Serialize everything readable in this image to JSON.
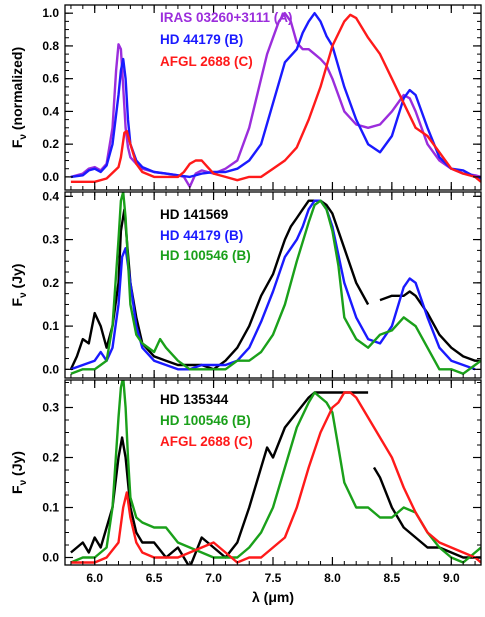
{
  "chart_data": [
    {
      "type": "line",
      "ylabel": "F_ν (normalized)",
      "ylim": [
        -0.08,
        1.05
      ],
      "xlim": [
        5.75,
        9.25
      ],
      "yticks": [
        0.0,
        0.2,
        0.4,
        0.6,
        0.8,
        1.0
      ],
      "ytick_labels": [
        "0.0",
        "0.2",
        "0.4",
        "0.6",
        "0.8",
        "1.0"
      ],
      "legend_position": "top-left",
      "series": [
        {
          "name": "IRAS 03260+3111 (A)",
          "color": "#9b2ddc",
          "x": [
            5.8,
            5.9,
            5.95,
            6.0,
            6.05,
            6.1,
            6.15,
            6.18,
            6.2,
            6.22,
            6.24,
            6.26,
            6.28,
            6.3,
            6.35,
            6.4,
            6.5,
            6.6,
            6.7,
            6.75,
            6.8,
            6.85,
            6.9,
            6.95,
            7.0,
            7.1,
            7.2,
            7.3,
            7.4,
            7.45,
            7.5,
            7.55,
            7.6,
            7.65,
            7.7,
            7.75,
            7.8,
            7.85,
            7.9,
            7.95,
            8.0,
            8.1,
            8.2,
            8.3,
            8.4,
            8.5,
            8.6,
            8.65,
            8.7,
            8.8,
            8.9,
            9.0,
            9.1,
            9.2,
            9.25
          ],
          "y": [
            0.0,
            0.02,
            0.05,
            0.06,
            0.04,
            0.08,
            0.3,
            0.65,
            0.81,
            0.78,
            0.55,
            0.3,
            0.18,
            0.12,
            0.08,
            0.05,
            0.03,
            0.02,
            0.01,
            0.0,
            -0.06,
            0.02,
            0.04,
            0.03,
            0.02,
            0.05,
            0.1,
            0.3,
            0.6,
            0.75,
            0.85,
            0.95,
            1.0,
            0.95,
            0.82,
            0.78,
            0.78,
            0.75,
            0.72,
            0.68,
            0.6,
            0.4,
            0.32,
            0.3,
            0.32,
            0.4,
            0.5,
            0.48,
            0.4,
            0.2,
            0.1,
            0.05,
            0.02,
            0.01,
            0.0
          ]
        },
        {
          "name": "HD 44179 (B)",
          "color": "#1a1aff",
          "x": [
            5.8,
            5.9,
            5.95,
            6.0,
            6.05,
            6.1,
            6.15,
            6.2,
            6.22,
            6.24,
            6.26,
            6.28,
            6.3,
            6.35,
            6.4,
            6.5,
            6.6,
            6.7,
            6.8,
            6.9,
            7.0,
            7.1,
            7.2,
            7.3,
            7.4,
            7.5,
            7.6,
            7.7,
            7.75,
            7.8,
            7.85,
            7.9,
            7.95,
            8.0,
            8.1,
            8.2,
            8.3,
            8.4,
            8.5,
            8.6,
            8.65,
            8.7,
            8.8,
            8.9,
            9.0,
            9.1,
            9.2,
            9.25
          ],
          "y": [
            0.0,
            0.01,
            0.04,
            0.05,
            0.03,
            0.07,
            0.2,
            0.5,
            0.65,
            0.72,
            0.6,
            0.35,
            0.2,
            0.1,
            0.06,
            0.03,
            0.02,
            0.01,
            0.0,
            0.02,
            0.03,
            0.03,
            0.05,
            0.1,
            0.2,
            0.45,
            0.7,
            0.78,
            0.88,
            0.95,
            1.0,
            0.95,
            0.86,
            0.8,
            0.55,
            0.35,
            0.2,
            0.15,
            0.25,
            0.48,
            0.53,
            0.5,
            0.3,
            0.12,
            0.05,
            0.04,
            0.0,
            -0.01
          ]
        },
        {
          "name": "AFGL 2688 (C)",
          "color": "#ff1a1a",
          "x": [
            5.8,
            5.9,
            6.0,
            6.1,
            6.2,
            6.22,
            6.25,
            6.27,
            6.3,
            6.35,
            6.4,
            6.5,
            6.6,
            6.7,
            6.75,
            6.8,
            6.85,
            6.9,
            6.95,
            7.0,
            7.1,
            7.2,
            7.3,
            7.4,
            7.5,
            7.6,
            7.7,
            7.8,
            7.9,
            8.0,
            8.1,
            8.15,
            8.2,
            8.3,
            8.4,
            8.5,
            8.6,
            8.7,
            8.8,
            8.9,
            9.0,
            9.1,
            9.2,
            9.25
          ],
          "y": [
            -0.03,
            -0.03,
            -0.03,
            -0.01,
            0.06,
            0.12,
            0.27,
            0.28,
            0.2,
            0.08,
            0.03,
            0.0,
            0.0,
            0.0,
            0.03,
            0.08,
            0.1,
            0.1,
            0.06,
            0.02,
            0.0,
            -0.02,
            0.0,
            0.0,
            0.05,
            0.1,
            0.18,
            0.35,
            0.55,
            0.8,
            0.95,
            0.99,
            0.97,
            0.85,
            0.75,
            0.6,
            0.45,
            0.3,
            0.25,
            0.15,
            0.05,
            0.02,
            0.0,
            -0.03
          ]
        }
      ]
    },
    {
      "type": "line",
      "ylabel": "F_ν (Jy)",
      "ylim": [
        -0.02,
        0.41
      ],
      "xlim": [
        5.75,
        9.25
      ],
      "yticks": [
        0.0,
        0.1,
        0.2,
        0.3,
        0.4
      ],
      "ytick_labels": [
        "0.0",
        "0.1",
        "0.2",
        "0.3",
        "0.4"
      ],
      "legend_position": "top-left",
      "series": [
        {
          "name": "HD 141569",
          "color": "#000000",
          "x": [
            5.8,
            5.85,
            5.9,
            5.95,
            6.0,
            6.05,
            6.1,
            6.15,
            6.2,
            6.22,
            6.25,
            6.27,
            6.3,
            6.35,
            6.4,
            6.5,
            6.6,
            6.7,
            6.8,
            6.9,
            7.0,
            7.1,
            7.2,
            7.3,
            7.4,
            7.5,
            7.55,
            7.6,
            7.65,
            7.7,
            7.75,
            7.8,
            7.85,
            7.9,
            7.95,
            8.0,
            8.1,
            8.2,
            8.3
          ],
          "y": [
            0.0,
            0.03,
            0.07,
            0.06,
            0.13,
            0.1,
            0.05,
            0.1,
            0.2,
            0.32,
            0.37,
            0.3,
            0.2,
            0.12,
            0.06,
            0.03,
            0.02,
            0.01,
            0.01,
            0.01,
            0.0,
            0.02,
            0.05,
            0.1,
            0.17,
            0.22,
            0.26,
            0.3,
            0.33,
            0.35,
            0.37,
            0.39,
            0.39,
            0.39,
            0.38,
            0.36,
            0.28,
            0.2,
            0.15
          ]
        },
        {
          "name": "HD 141569",
          "color": "#000000",
          "x": [
            8.4,
            8.5,
            8.6,
            8.65,
            8.7,
            8.8,
            8.9,
            9.0,
            9.1,
            9.2,
            9.25
          ],
          "y": [
            0.16,
            0.17,
            0.17,
            0.18,
            0.17,
            0.13,
            0.08,
            0.05,
            0.03,
            0.02,
            0.02
          ]
        },
        {
          "name": "HD 44179 (B)",
          "color": "#1a1aff",
          "x": [
            5.8,
            5.9,
            6.0,
            6.05,
            6.1,
            6.15,
            6.2,
            6.23,
            6.26,
            6.3,
            6.35,
            6.4,
            6.5,
            6.6,
            6.7,
            6.8,
            6.9,
            7.0,
            7.1,
            7.2,
            7.3,
            7.4,
            7.5,
            7.6,
            7.7,
            7.75,
            7.8,
            7.85,
            7.9,
            7.95,
            8.0,
            8.1,
            8.2,
            8.3,
            8.4,
            8.5,
            8.6,
            8.65,
            8.7,
            8.8,
            8.9,
            9.0,
            9.1,
            9.2
          ],
          "y": [
            0.0,
            0.01,
            0.02,
            0.04,
            0.02,
            0.05,
            0.15,
            0.26,
            0.28,
            0.2,
            0.1,
            0.05,
            0.02,
            0.01,
            0.0,
            0.0,
            0.01,
            0.01,
            0.01,
            0.02,
            0.05,
            0.11,
            0.18,
            0.26,
            0.3,
            0.33,
            0.37,
            0.39,
            0.39,
            0.37,
            0.33,
            0.2,
            0.12,
            0.07,
            0.06,
            0.1,
            0.19,
            0.21,
            0.2,
            0.12,
            0.05,
            0.02,
            0.01,
            0.0
          ]
        },
        {
          "name": "HD 100546 (B)",
          "color": "#1aa01a",
          "x": [
            5.8,
            5.9,
            6.0,
            6.05,
            6.1,
            6.15,
            6.2,
            6.22,
            6.24,
            6.26,
            6.28,
            6.3,
            6.35,
            6.4,
            6.5,
            6.55,
            6.6,
            6.7,
            6.8,
            6.9,
            7.0,
            7.1,
            7.2,
            7.3,
            7.4,
            7.5,
            7.6,
            7.7,
            7.8,
            7.85,
            7.9,
            7.95,
            8.0,
            8.05,
            8.1,
            8.2,
            8.3,
            8.4,
            8.5,
            8.6,
            8.7,
            8.8,
            8.9,
            9.0,
            9.1,
            9.2,
            9.25
          ],
          "y": [
            -0.01,
            0.0,
            0.0,
            0.01,
            0.02,
            0.1,
            0.3,
            0.39,
            0.41,
            0.35,
            0.25,
            0.15,
            0.08,
            0.06,
            0.04,
            0.07,
            0.05,
            0.02,
            0.0,
            0.0,
            0.0,
            0.0,
            0.02,
            0.02,
            0.04,
            0.08,
            0.15,
            0.25,
            0.34,
            0.38,
            0.39,
            0.37,
            0.32,
            0.24,
            0.12,
            0.07,
            0.05,
            0.08,
            0.09,
            0.12,
            0.1,
            0.05,
            0.0,
            0.0,
            -0.01,
            0.01,
            0.02
          ]
        }
      ]
    },
    {
      "type": "line",
      "ylabel": "F_ν (Jy)",
      "xlabel": "λ (μm)",
      "ylim": [
        -0.015,
        0.355
      ],
      "xlim": [
        5.75,
        9.25
      ],
      "xticks": [
        6.0,
        6.5,
        7.0,
        7.5,
        8.0,
        8.5,
        9.0
      ],
      "xtick_labels": [
        "6.0",
        "6.5",
        "7.0",
        "7.5",
        "8.0",
        "8.5",
        "9.0"
      ],
      "yticks": [
        0.0,
        0.1,
        0.2,
        0.3
      ],
      "ytick_labels": [
        "0.0",
        "0.1",
        "0.2",
        "0.3"
      ],
      "legend_position": "top-left",
      "series": [
        {
          "name": "HD 135344",
          "color": "#000000",
          "x": [
            5.8,
            5.85,
            5.9,
            5.95,
            6.0,
            6.05,
            6.1,
            6.15,
            6.2,
            6.23,
            6.26,
            6.3,
            6.35,
            6.4,
            6.5,
            6.6,
            6.7,
            6.8,
            6.9,
            7.0,
            7.1,
            7.2,
            7.3,
            7.4,
            7.45,
            7.5,
            7.6,
            7.7,
            7.8,
            7.85,
            7.9,
            7.95,
            8.0,
            8.05,
            8.1,
            8.2,
            8.3
          ],
          "y": [
            0.01,
            0.02,
            0.03,
            0.01,
            0.04,
            0.02,
            0.06,
            0.1,
            0.2,
            0.24,
            0.2,
            0.1,
            0.05,
            0.03,
            0.03,
            0.0,
            0.02,
            -0.02,
            0.04,
            0.02,
            0.0,
            0.03,
            0.1,
            0.18,
            0.22,
            0.2,
            0.26,
            0.29,
            0.32,
            0.33,
            0.33,
            0.33,
            0.33,
            0.33,
            0.33,
            0.33,
            0.33
          ]
        },
        {
          "name": "HD 135344",
          "color": "#000000",
          "x": [
            8.35,
            8.4,
            8.5,
            8.6,
            8.7,
            8.8,
            8.9,
            9.0,
            9.1,
            9.2,
            9.25
          ],
          "y": [
            0.18,
            0.16,
            0.1,
            0.06,
            0.04,
            0.02,
            0.02,
            0.01,
            0.0,
            0.0,
            0.0
          ]
        },
        {
          "name": "HD 100546 (B)",
          "color": "#1aa01a",
          "x": [
            5.8,
            5.9,
            6.0,
            6.1,
            6.15,
            6.2,
            6.22,
            6.24,
            6.26,
            6.28,
            6.3,
            6.35,
            6.4,
            6.5,
            6.6,
            6.7,
            6.8,
            6.9,
            7.0,
            7.1,
            7.2,
            7.3,
            7.4,
            7.5,
            7.6,
            7.7,
            7.8,
            7.85,
            7.9,
            7.95,
            8.0,
            8.05,
            8.1,
            8.2,
            8.3,
            8.4,
            8.5,
            8.6,
            8.7,
            8.8,
            8.9,
            9.0,
            9.1,
            9.2,
            9.25
          ],
          "y": [
            -0.01,
            0.0,
            0.0,
            0.02,
            0.1,
            0.28,
            0.34,
            0.36,
            0.3,
            0.2,
            0.12,
            0.08,
            0.07,
            0.06,
            0.06,
            0.03,
            0.02,
            0.01,
            0.0,
            0.0,
            0.0,
            0.02,
            0.05,
            0.1,
            0.18,
            0.26,
            0.31,
            0.33,
            0.32,
            0.31,
            0.29,
            0.22,
            0.15,
            0.1,
            0.1,
            0.08,
            0.08,
            0.1,
            0.09,
            0.05,
            0.02,
            0.0,
            -0.01,
            0.01,
            0.02
          ]
        },
        {
          "name": "AFGL 2688 (C)",
          "color": "#ff1a1a",
          "x": [
            5.8,
            5.9,
            6.0,
            6.1,
            6.2,
            6.24,
            6.27,
            6.3,
            6.35,
            6.4,
            6.5,
            6.6,
            6.7,
            6.8,
            6.9,
            7.0,
            7.1,
            7.2,
            7.3,
            7.4,
            7.5,
            7.6,
            7.7,
            7.8,
            7.9,
            8.0,
            8.05,
            8.1,
            8.15,
            8.2,
            8.3,
            8.4,
            8.5,
            8.6,
            8.7,
            8.8,
            8.9,
            9.0,
            9.1,
            9.2,
            9.25
          ],
          "y": [
            -0.01,
            -0.01,
            -0.01,
            0.0,
            0.03,
            0.1,
            0.13,
            0.08,
            0.03,
            0.01,
            0.0,
            0.0,
            0.0,
            0.01,
            0.02,
            0.03,
            0.01,
            -0.01,
            0.0,
            0.0,
            0.02,
            0.04,
            0.1,
            0.18,
            0.25,
            0.3,
            0.31,
            0.33,
            0.33,
            0.32,
            0.28,
            0.24,
            0.2,
            0.14,
            0.09,
            0.05,
            0.03,
            0.02,
            0.01,
            0.0,
            -0.01
          ]
        }
      ]
    }
  ],
  "legends": [
    [
      {
        "text": "IRAS 03260+3111 (A)",
        "color": "#9b2ddc"
      },
      {
        "text": "HD 44179 (B)",
        "color": "#1a1aff"
      },
      {
        "text": "AFGL 2688 (C)",
        "color": "#ff1a1a"
      }
    ],
    [
      {
        "text": "HD 141569",
        "color": "#000000"
      },
      {
        "text": "HD 44179 (B)",
        "color": "#1a1aff"
      },
      {
        "text": "HD 100546 (B)",
        "color": "#1aa01a"
      }
    ],
    [
      {
        "text": "HD 135344",
        "color": "#000000"
      },
      {
        "text": "HD 100546 (B)",
        "color": "#1aa01a"
      },
      {
        "text": "AFGL 2688 (C)",
        "color": "#ff1a1a"
      }
    ]
  ]
}
